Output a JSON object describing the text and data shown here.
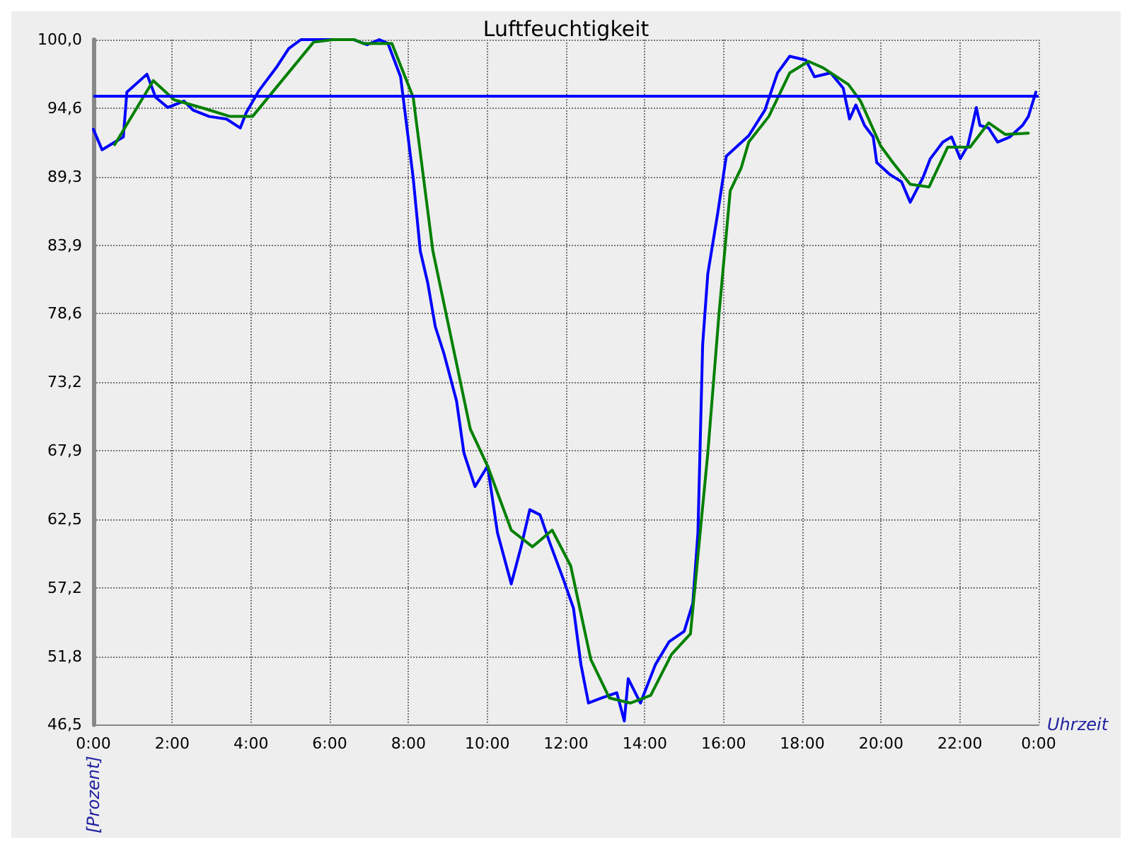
{
  "chart_data": {
    "type": "line",
    "title": "Luftfeuchtigkeit",
    "xlabel": "Uhrzeit",
    "ylabel": "[Prozent]",
    "xlim": [
      0,
      24
    ],
    "xticks": [
      {
        "value": 0,
        "label": "0:00"
      },
      {
        "value": 2,
        "label": "2:00"
      },
      {
        "value": 4,
        "label": "4:00"
      },
      {
        "value": 6,
        "label": "6:00"
      },
      {
        "value": 8,
        "label": "8:00"
      },
      {
        "value": 10,
        "label": "10:00"
      },
      {
        "value": 12,
        "label": "12:00"
      },
      {
        "value": 14,
        "label": "14:00"
      },
      {
        "value": 16,
        "label": "16:00"
      },
      {
        "value": 18,
        "label": "18:00"
      },
      {
        "value": 20,
        "label": "20:00"
      },
      {
        "value": 22,
        "label": "22:00"
      },
      {
        "value": 24,
        "label": "0:00"
      }
    ],
    "ylim": [
      46.5,
      100
    ],
    "yticks": [
      {
        "value": 46.5,
        "label": "46,5"
      },
      {
        "value": 51.85,
        "label": "51,8"
      },
      {
        "value": 57.2,
        "label": "57,2"
      },
      {
        "value": 62.55,
        "label": "62,5"
      },
      {
        "value": 67.9,
        "label": "67,9"
      },
      {
        "value": 73.25,
        "label": "73,2"
      },
      {
        "value": 78.6,
        "label": "78,6"
      },
      {
        "value": 83.95,
        "label": "83,9"
      },
      {
        "value": 89.3,
        "label": "89,3"
      },
      {
        "value": 94.65,
        "label": "94,6"
      },
      {
        "value": 100,
        "label": "100,0"
      }
    ],
    "grid": true,
    "marker": "none",
    "line_style": "solid",
    "ref_lines": [
      {
        "axis": "y",
        "value": 95.6,
        "color": "#0000ff"
      }
    ],
    "series": [
      {
        "color": "#0000ff",
        "x": [
          0,
          0.22,
          0.76,
          0.85,
          1.36,
          1.58,
          1.89,
          2.3,
          2.53,
          2.94,
          3.38,
          3.73,
          3.88,
          4.2,
          4.64,
          4.96,
          5.27,
          6.6,
          6.95,
          7.26,
          7.48,
          7.8,
          8.12,
          8.3,
          8.49,
          8.68,
          8.9,
          9.22,
          9.41,
          9.69,
          10.01,
          10.26,
          10.61,
          10.86,
          11.08,
          11.34,
          11.59,
          11.94,
          12.19,
          12.38,
          12.57,
          12.91,
          13.29,
          13.48,
          13.58,
          13.89,
          14.27,
          14.62,
          15.0,
          15.22,
          15.35,
          15.47,
          15.6,
          15.85,
          16.07,
          16.32,
          16.64,
          17.05,
          17.37,
          17.68,
          18.09,
          18.31,
          18.72,
          19.04,
          19.2,
          19.36,
          19.58,
          19.8,
          19.89,
          20.21,
          20.52,
          20.74,
          21.06,
          21.25,
          21.57,
          21.79,
          22.01,
          22.2,
          22.32,
          22.42,
          22.51,
          22.73,
          22.96,
          23.27,
          23.59,
          23.74,
          23.93
        ],
        "values": [
          93.0,
          91.4,
          92.4,
          95.9,
          97.3,
          95.5,
          94.7,
          95.2,
          94.5,
          94.0,
          93.8,
          93.1,
          94.3,
          96.0,
          97.8,
          99.3,
          100,
          100,
          99.6,
          100,
          99.7,
          97.1,
          89.2,
          83.5,
          81.0,
          77.6,
          75.5,
          71.8,
          67.7,
          65.1,
          66.7,
          61.5,
          57.5,
          60.4,
          63.3,
          62.9,
          60.7,
          57.8,
          55.6,
          51.2,
          48.2,
          48.6,
          49.0,
          46.8,
          50.1,
          48.2,
          51.2,
          53.0,
          53.8,
          56.0,
          61.5,
          76.2,
          81.7,
          86.4,
          90.9,
          91.6,
          92.5,
          94.5,
          97.4,
          98.7,
          98.4,
          97.1,
          97.4,
          96.2,
          93.8,
          94.9,
          93.3,
          92.4,
          90.4,
          89.5,
          88.9,
          87.3,
          89.2,
          90.7,
          92.0,
          92.4,
          90.7,
          91.7,
          93.3,
          94.7,
          93.3,
          93.1,
          92.0,
          92.4,
          93.3,
          94.0,
          95.9
        ]
      },
      {
        "color": "#008000",
        "x": [
          0.54,
          1.52,
          2.05,
          2.84,
          3.47,
          4.04,
          5.59,
          6.09,
          6.63,
          6.85,
          7.58,
          8.12,
          8.62,
          9.57,
          10.01,
          10.61,
          11.15,
          11.65,
          12.12,
          12.63,
          13.1,
          13.64,
          14.15,
          14.68,
          15.16,
          15.35,
          15.6,
          15.88,
          16.17,
          16.45,
          16.64,
          17.15,
          17.68,
          18.16,
          18.53,
          19.17,
          19.48,
          19.99,
          20.3,
          20.74,
          21.22,
          21.69,
          22.26,
          22.73,
          23.15,
          23.74
        ],
        "values": [
          91.8,
          96.8,
          95.3,
          94.6,
          94.0,
          94.0,
          99.8,
          100,
          100,
          99.7,
          99.7,
          95.5,
          83.5,
          69.6,
          66.7,
          61.7,
          60.4,
          61.7,
          58.9,
          51.6,
          48.6,
          48.2,
          48.8,
          52.0,
          53.6,
          59.7,
          67.7,
          78.4,
          88.2,
          90.0,
          92.0,
          94.0,
          97.4,
          98.3,
          97.8,
          96.5,
          95.2,
          91.7,
          90.4,
          88.7,
          88.5,
          91.6,
          91.6,
          93.5,
          92.6,
          92.7
        ]
      }
    ]
  }
}
